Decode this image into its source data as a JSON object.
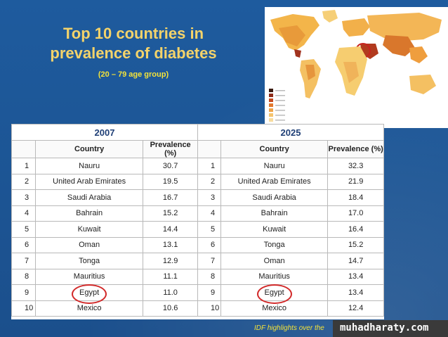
{
  "slide": {
    "title_line1": "Top 10 countries in",
    "title_line2": "prevalence of diabetes",
    "subtitle": "(20 – 79 age group)",
    "footer": "IDF highlights over the",
    "watermark": "muhadharaty.com",
    "colors": {
      "background": "#1f5597",
      "title": "#f4d36a",
      "subtitle": "#f4e33a",
      "highlight_ring": "#d22a2a"
    }
  },
  "table": {
    "year_left": "2007",
    "year_right": "2025",
    "col_country": "Country",
    "col_prevalence": "Prevalence (%)",
    "rows": [
      {
        "rank": "1",
        "country_2007": "Nauru",
        "prev_2007": "30.7",
        "rank_r": "1",
        "country_2025": "Nauru",
        "prev_2025": "32.3"
      },
      {
        "rank": "2",
        "country_2007": "United Arab Emirates",
        "prev_2007": "19.5",
        "rank_r": "2",
        "country_2025": "United Arab Emirates",
        "prev_2025": "21.9"
      },
      {
        "rank": "3",
        "country_2007": "Saudi Arabia",
        "prev_2007": "16.7",
        "rank_r": "3",
        "country_2025": "Saudi Arabia",
        "prev_2025": "18.4"
      },
      {
        "rank": "4",
        "country_2007": "Bahrain",
        "prev_2007": "15.2",
        "rank_r": "4",
        "country_2025": "Bahrain",
        "prev_2025": "17.0"
      },
      {
        "rank": "5",
        "country_2007": "Kuwait",
        "prev_2007": "14.4",
        "rank_r": "5",
        "country_2025": "Kuwait",
        "prev_2025": "16.4"
      },
      {
        "rank": "6",
        "country_2007": "Oman",
        "prev_2007": "13.1",
        "rank_r": "6",
        "country_2025": "Tonga",
        "prev_2025": "15.2"
      },
      {
        "rank": "7",
        "country_2007": "Tonga",
        "prev_2007": "12.9",
        "rank_r": "7",
        "country_2025": "Oman",
        "prev_2025": "14.7"
      },
      {
        "rank": "8",
        "country_2007": "Mauritius",
        "prev_2007": "11.1",
        "rank_r": "8",
        "country_2025": "Mauritius",
        "prev_2025": "13.4"
      },
      {
        "rank": "9",
        "country_2007": "Egypt",
        "prev_2007": "11.0",
        "rank_r": "9",
        "country_2025": "Egypt",
        "prev_2025": "13.4"
      },
      {
        "rank": "10",
        "country_2007": "Mexico",
        "prev_2007": "10.6",
        "rank_r": "10",
        "country_2025": "Mexico",
        "prev_2025": "12.4"
      }
    ]
  },
  "map": {
    "legend_labels": [
      "",
      "",
      "",
      "",
      "",
      "",
      ""
    ]
  }
}
